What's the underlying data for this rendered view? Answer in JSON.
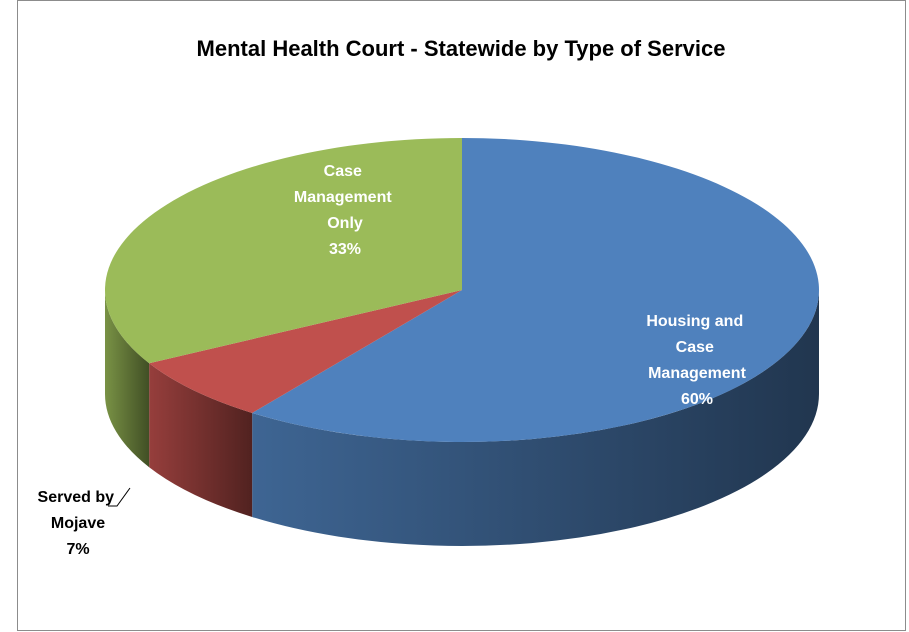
{
  "chart_data": {
    "type": "pie",
    "title": "Mental Health Court - Statewide by Type of Service",
    "categories": [
      "Housing and Case Management",
      "Served by Mojave",
      "Case Management Only"
    ],
    "values": [
      60,
      7,
      33
    ],
    "value_labels": [
      "60%",
      "7%",
      "33%"
    ],
    "colors": [
      "#4f81bd",
      "#c0504d",
      "#9bbb59"
    ],
    "legend": false
  }
}
